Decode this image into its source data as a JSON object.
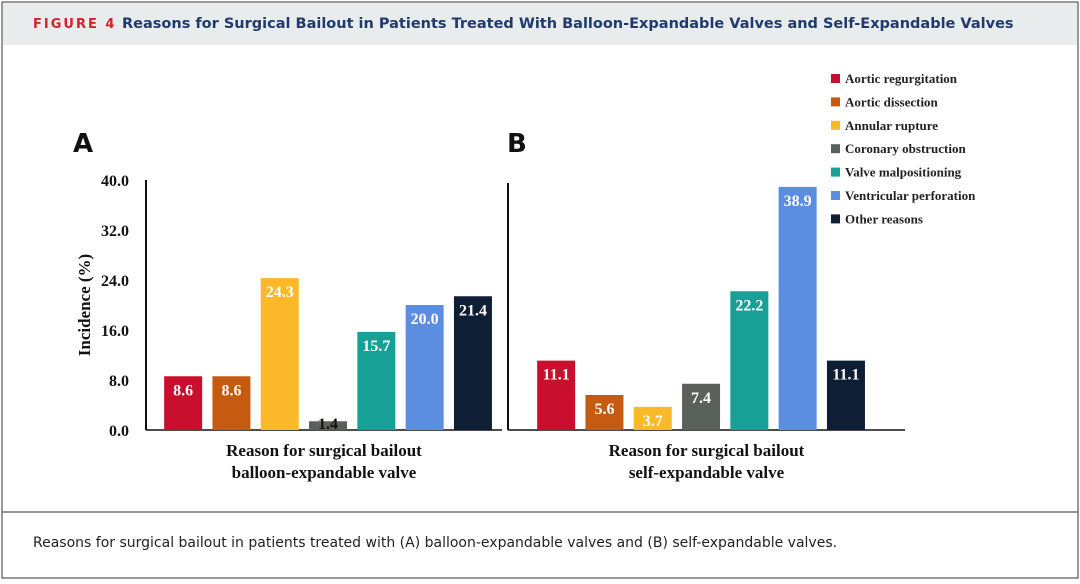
{
  "header": {
    "label": "FIGURE 4",
    "title": "Reasons for Surgical Bailout in Patients Treated With Balloon-Expandable Valves and Self-Expandable Valves"
  },
  "legend": [
    {
      "name": "Aortic regurgitation",
      "color": "#c8102e"
    },
    {
      "name": "Aortic dissection",
      "color": "#c55a11"
    },
    {
      "name": "Annular rupture",
      "color": "#fbb829"
    },
    {
      "name": "Coronary obstruction",
      "color": "#5a605a"
    },
    {
      "name": "Valve malpositioning",
      "color": "#17a096"
    },
    {
      "name": "Ventricular perforation",
      "color": "#5b8ee0"
    },
    {
      "name": "Other reasons",
      "color": "#0e1e35"
    }
  ],
  "chart_data": [
    {
      "type": "bar",
      "panel": "A",
      "ylabel": "Incidence (%)",
      "xlabel": [
        "Reason for surgical bailout",
        "balloon-expandable valve"
      ],
      "values": [
        8.6,
        8.6,
        24.3,
        1.4,
        15.7,
        20.0,
        21.4
      ],
      "value_labels": [
        "8.6",
        "8.6",
        "24.3",
        "1.4",
        "15.7",
        "20.0",
        "21.4"
      ],
      "ylim": [
        0,
        40
      ],
      "yticks": [
        {
          "value": 0,
          "label": "0.0"
        },
        {
          "value": 8,
          "label": "8.0"
        },
        {
          "value": 16,
          "label": "16.0"
        },
        {
          "value": 24,
          "label": "24.0"
        },
        {
          "value": 32,
          "label": "32.0"
        },
        {
          "value": 40,
          "label": "40.0"
        }
      ]
    },
    {
      "type": "bar",
      "panel": "B",
      "xlabel": [
        "Reason for surgical bailout",
        "self-expandable valve"
      ],
      "values": [
        11.1,
        5.6,
        3.7,
        7.4,
        22.2,
        38.9,
        11.1
      ],
      "ylim": [
        0,
        40
      ]
    }
  ],
  "caption": "Reasons for surgical bailout in patients treated with (A) balloon-expandable valves and (B) self-expandable valves."
}
